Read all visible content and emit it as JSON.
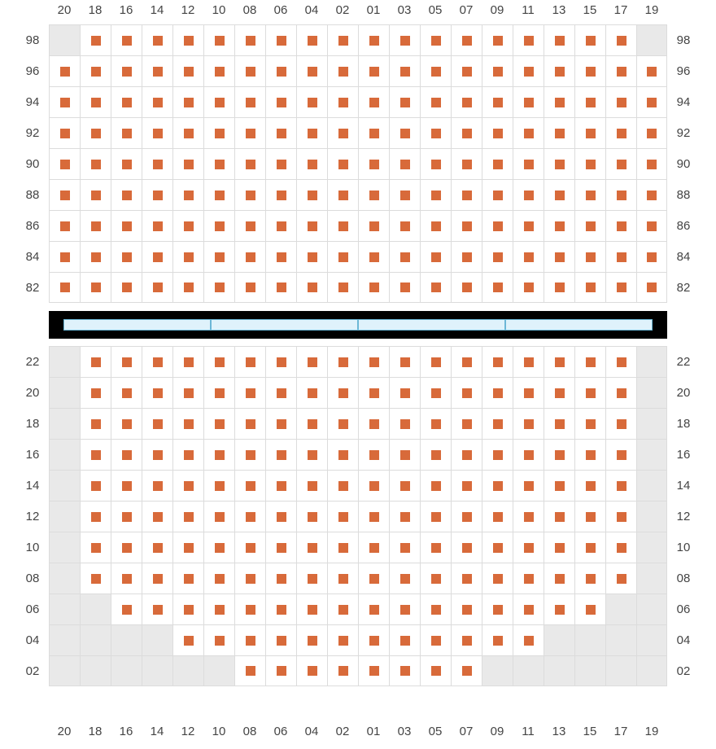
{
  "seat_color": "#d86a3a",
  "grey_bg": "#e9e9e9",
  "cell_bg": "#ffffff",
  "border_color": "#dcdcdc",
  "label_color": "#444444",
  "divider_bg": "#000000",
  "divider_cell_bg": "#dff2fb",
  "divider_cell_border": "#6bb7d6",
  "columns": [
    "20",
    "18",
    "16",
    "14",
    "12",
    "10",
    "08",
    "06",
    "04",
    "02",
    "01",
    "03",
    "05",
    "07",
    "09",
    "11",
    "13",
    "15",
    "17",
    "19"
  ],
  "divider_segments": 4,
  "upper": {
    "rows": [
      "98",
      "96",
      "94",
      "92",
      "90",
      "88",
      "86",
      "84",
      "82"
    ],
    "cells": {
      "98": {
        "grey": [
          0,
          19
        ],
        "seat": [
          1,
          2,
          3,
          4,
          5,
          6,
          7,
          8,
          9,
          10,
          11,
          12,
          13,
          14,
          15,
          16,
          17,
          18
        ]
      },
      "96": {
        "grey": [],
        "seat": [
          0,
          1,
          2,
          3,
          4,
          5,
          6,
          7,
          8,
          9,
          10,
          11,
          12,
          13,
          14,
          15,
          16,
          17,
          18,
          19
        ]
      },
      "94": {
        "grey": [],
        "seat": [
          0,
          1,
          2,
          3,
          4,
          5,
          6,
          7,
          8,
          9,
          10,
          11,
          12,
          13,
          14,
          15,
          16,
          17,
          18,
          19
        ]
      },
      "92": {
        "grey": [],
        "seat": [
          0,
          1,
          2,
          3,
          4,
          5,
          6,
          7,
          8,
          9,
          10,
          11,
          12,
          13,
          14,
          15,
          16,
          17,
          18,
          19
        ]
      },
      "90": {
        "grey": [],
        "seat": [
          0,
          1,
          2,
          3,
          4,
          5,
          6,
          7,
          8,
          9,
          10,
          11,
          12,
          13,
          14,
          15,
          16,
          17,
          18,
          19
        ]
      },
      "88": {
        "grey": [],
        "seat": [
          0,
          1,
          2,
          3,
          4,
          5,
          6,
          7,
          8,
          9,
          10,
          11,
          12,
          13,
          14,
          15,
          16,
          17,
          18,
          19
        ]
      },
      "86": {
        "grey": [],
        "seat": [
          0,
          1,
          2,
          3,
          4,
          5,
          6,
          7,
          8,
          9,
          10,
          11,
          12,
          13,
          14,
          15,
          16,
          17,
          18,
          19
        ]
      },
      "84": {
        "grey": [],
        "seat": [
          0,
          1,
          2,
          3,
          4,
          5,
          6,
          7,
          8,
          9,
          10,
          11,
          12,
          13,
          14,
          15,
          16,
          17,
          18,
          19
        ]
      },
      "82": {
        "grey": [],
        "seat": [
          0,
          1,
          2,
          3,
          4,
          5,
          6,
          7,
          8,
          9,
          10,
          11,
          12,
          13,
          14,
          15,
          16,
          17,
          18,
          19
        ]
      }
    }
  },
  "lower": {
    "rows": [
      "22",
      "20",
      "18",
      "16",
      "14",
      "12",
      "10",
      "08",
      "06",
      "04",
      "02"
    ],
    "cells": {
      "22": {
        "grey": [
          0,
          19
        ],
        "seat": [
          1,
          2,
          3,
          4,
          5,
          6,
          7,
          8,
          9,
          10,
          11,
          12,
          13,
          14,
          15,
          16,
          17,
          18
        ]
      },
      "20": {
        "grey": [
          0,
          19
        ],
        "seat": [
          1,
          2,
          3,
          4,
          5,
          6,
          7,
          8,
          9,
          10,
          11,
          12,
          13,
          14,
          15,
          16,
          17,
          18
        ]
      },
      "18": {
        "grey": [
          0,
          19
        ],
        "seat": [
          1,
          2,
          3,
          4,
          5,
          6,
          7,
          8,
          9,
          10,
          11,
          12,
          13,
          14,
          15,
          16,
          17,
          18
        ]
      },
      "16": {
        "grey": [
          0,
          19
        ],
        "seat": [
          1,
          2,
          3,
          4,
          5,
          6,
          7,
          8,
          9,
          10,
          11,
          12,
          13,
          14,
          15,
          16,
          17,
          18
        ]
      },
      "14": {
        "grey": [
          0,
          19
        ],
        "seat": [
          1,
          2,
          3,
          4,
          5,
          6,
          7,
          8,
          9,
          10,
          11,
          12,
          13,
          14,
          15,
          16,
          17,
          18
        ]
      },
      "12": {
        "grey": [
          0,
          19
        ],
        "seat": [
          1,
          2,
          3,
          4,
          5,
          6,
          7,
          8,
          9,
          10,
          11,
          12,
          13,
          14,
          15,
          16,
          17,
          18
        ]
      },
      "10": {
        "grey": [
          0,
          19
        ],
        "seat": [
          1,
          2,
          3,
          4,
          5,
          6,
          7,
          8,
          9,
          10,
          11,
          12,
          13,
          14,
          15,
          16,
          17,
          18
        ]
      },
      "08": {
        "grey": [
          0,
          19
        ],
        "seat": [
          1,
          2,
          3,
          4,
          5,
          6,
          7,
          8,
          9,
          10,
          11,
          12,
          13,
          14,
          15,
          16,
          17,
          18
        ]
      },
      "06": {
        "grey": [
          0,
          1,
          18,
          19
        ],
        "seat": [
          2,
          3,
          4,
          5,
          6,
          7,
          8,
          9,
          10,
          11,
          12,
          13,
          14,
          15,
          16,
          17
        ]
      },
      "04": {
        "grey": [
          0,
          1,
          2,
          3,
          16,
          17,
          18,
          19
        ],
        "seat": [
          4,
          5,
          6,
          7,
          8,
          9,
          10,
          11,
          12,
          13,
          14,
          15
        ]
      },
      "02": {
        "grey": [
          0,
          1,
          2,
          3,
          4,
          5,
          14,
          15,
          16,
          17,
          18,
          19
        ],
        "seat": [
          6,
          7,
          8,
          9,
          10,
          11,
          12,
          13
        ]
      }
    }
  }
}
